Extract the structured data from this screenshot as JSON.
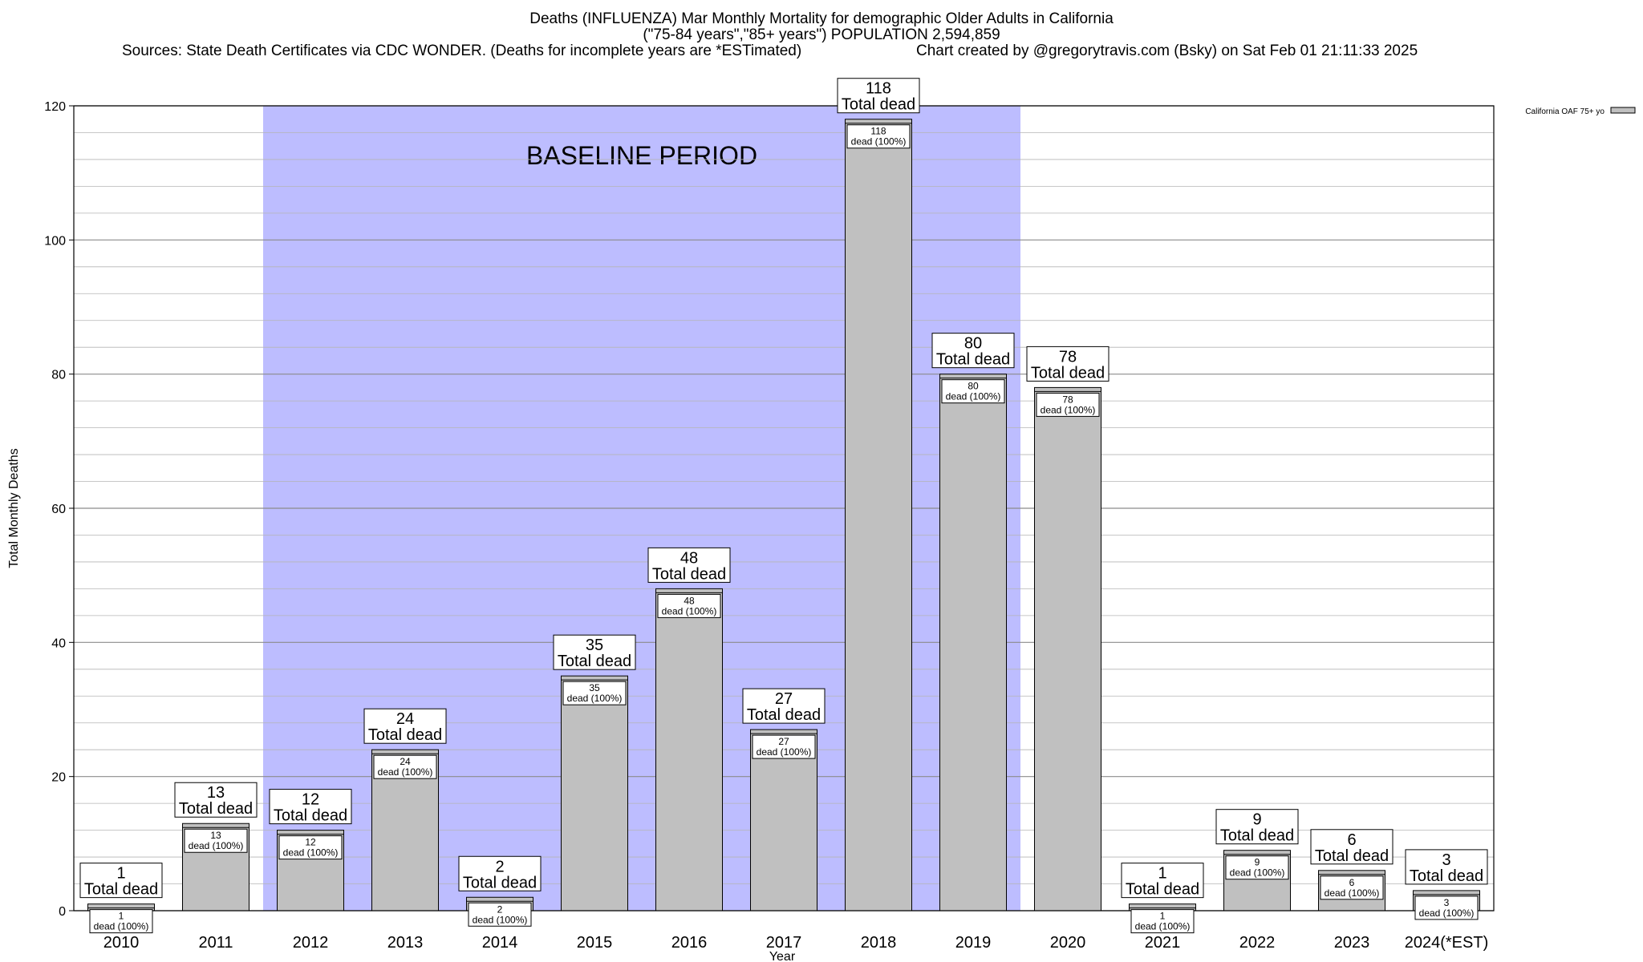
{
  "header": {
    "title_line1": "Deaths (INFLUENZA) Mar Monthly Mortality for demographic Older Adults in California",
    "title_line2": "(\"75-84 years\",\"85+ years\") POPULATION 2,594,859",
    "sources": "Sources: State Death Certificates via CDC WONDER. (Deaths for incomplete years are *ESTimated)",
    "credit": "Chart created by @gregorytravis.com (Bsky) on Sat Feb 01 21:11:33 2025"
  },
  "chart_data": {
    "type": "bar",
    "categories": [
      "2010",
      "2011",
      "2012",
      "2013",
      "2014",
      "2015",
      "2016",
      "2017",
      "2018",
      "2019",
      "2020",
      "2021",
      "2022",
      "2023",
      "2024(*EST)"
    ],
    "series": [
      {
        "name": "California OAF 75+ yo",
        "values": [
          1,
          13,
          12,
          24,
          2,
          35,
          48,
          27,
          118,
          80,
          78,
          1,
          9,
          6,
          3
        ]
      }
    ],
    "xlabel": "Year",
    "ylabel": "Total Monthly Deaths",
    "ylim": [
      0,
      120
    ],
    "yticks": [
      0,
      20,
      40,
      60,
      80,
      100,
      120
    ],
    "grid": true,
    "legend": "top-right",
    "bar_color": "#c0c0c0",
    "baseline": {
      "label": "BASELINE PERIOD",
      "from": "2012",
      "to": "2019",
      "color": "#bdbdff"
    },
    "annotations": {
      "total_suffix": "Total dead",
      "inner_suffix": "dead (100%)"
    }
  }
}
